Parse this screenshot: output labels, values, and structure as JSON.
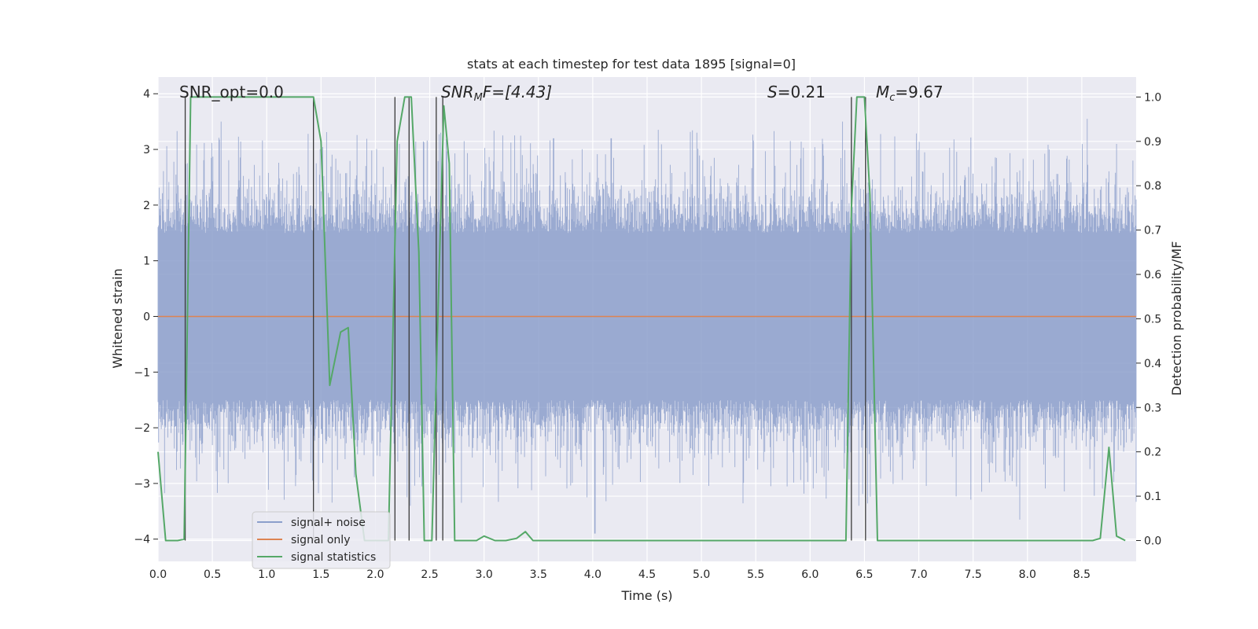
{
  "chart_data": {
    "type": "line",
    "title": "stats at each timestep for test data 1895 [signal=0]",
    "xlabel": "Time (s)",
    "ylabel": "Whitened strain",
    "y2label": "Detection probability/MF",
    "xlim": [
      0.0,
      9.0
    ],
    "ylim": [
      -4.4,
      4.3
    ],
    "y2lim": [
      -0.047,
      1.045
    ],
    "xticks": [
      "0.0",
      "0.5",
      "1.0",
      "1.5",
      "2.0",
      "2.5",
      "3.0",
      "3.5",
      "4.0",
      "4.5",
      "5.0",
      "5.5",
      "6.0",
      "6.5",
      "7.0",
      "7.5",
      "8.0",
      "8.5"
    ],
    "yticks": [
      "−4",
      "−3",
      "−2",
      "−1",
      "0",
      "1",
      "2",
      "3",
      "4"
    ],
    "y2ticks": [
      "0.0",
      "0.1",
      "0.2",
      "0.3",
      "0.4",
      "0.5",
      "0.6",
      "0.7",
      "0.8",
      "0.9",
      "1.0"
    ],
    "grid": true,
    "legend_position": "lower-left",
    "annotations": {
      "snr_opt": "SNR_opt=0.0",
      "snr_mf_main": "SNR",
      "snr_mf_sub": "M",
      "snr_mf_rest": "F=[4.43]",
      "s_main": "S",
      "s_rest": "=0.21",
      "mc_main": "M",
      "mc_sub": "c",
      "mc_rest": "=9.67"
    },
    "series": [
      {
        "name": "signal+ noise",
        "color": "#8c9fcb",
        "noise_typical_abs": 1.2,
        "noise_peak_abs": 3.9,
        "peaks": [
          [
            0.58,
            3.5
          ],
          [
            1.42,
            -2.95
          ],
          [
            2.22,
            3.1
          ],
          [
            2.32,
            -3.4
          ],
          [
            2.6,
            3.3
          ],
          [
            2.62,
            -3.45
          ],
          [
            3.28,
            3.25
          ],
          [
            3.64,
            3.2
          ],
          [
            4.02,
            -3.9
          ],
          [
            4.17,
            3.2
          ],
          [
            5.82,
            3.15
          ],
          [
            6.3,
            3.5
          ],
          [
            6.38,
            3.3
          ],
          [
            6.45,
            -3.4
          ],
          [
            6.51,
            3.2
          ],
          [
            7.93,
            -3.65
          ],
          [
            8.55,
            3.55
          ],
          [
            8.82,
            3.1
          ]
        ]
      },
      {
        "name": "signal only",
        "color": "#dd8452",
        "x": [
          0.0,
          9.0
        ],
        "y": [
          0.0,
          0.0
        ]
      },
      {
        "name": "signal statistics",
        "color": "#55a868",
        "axis": "right",
        "x": [
          0.0,
          0.07,
          0.18,
          0.24,
          0.3,
          1.43,
          1.5,
          1.58,
          1.68,
          1.75,
          1.82,
          1.9,
          2.0,
          2.12,
          2.2,
          2.27,
          2.33,
          2.4,
          2.45,
          2.52,
          2.58,
          2.63,
          2.68,
          2.73,
          2.82,
          2.93,
          3.0,
          3.1,
          3.2,
          3.3,
          3.38,
          3.45,
          3.6,
          6.33,
          6.38,
          6.43,
          6.5,
          6.55,
          6.62,
          6.7,
          7.7,
          8.6,
          8.67,
          8.75,
          8.82,
          8.9
        ],
        "y": [
          0.2,
          0.0,
          0.0,
          0.003,
          1.0,
          1.0,
          0.9,
          0.35,
          0.47,
          0.48,
          0.15,
          0.0,
          0.0,
          0.0,
          0.9,
          1.0,
          1.0,
          0.65,
          0.0,
          0.0,
          0.55,
          0.98,
          0.85,
          0.0,
          0.0,
          0.0,
          0.01,
          0.0,
          0.0,
          0.005,
          0.02,
          0.0,
          0.0,
          0.0,
          0.75,
          1.0,
          1.0,
          0.78,
          0.0,
          0.0,
          0.0,
          0.0,
          0.005,
          0.21,
          0.01,
          0.0
        ]
      }
    ],
    "vertical_markers": [
      0.25,
      1.43,
      2.18,
      2.31,
      2.56,
      2.62,
      6.38,
      6.51
    ]
  }
}
